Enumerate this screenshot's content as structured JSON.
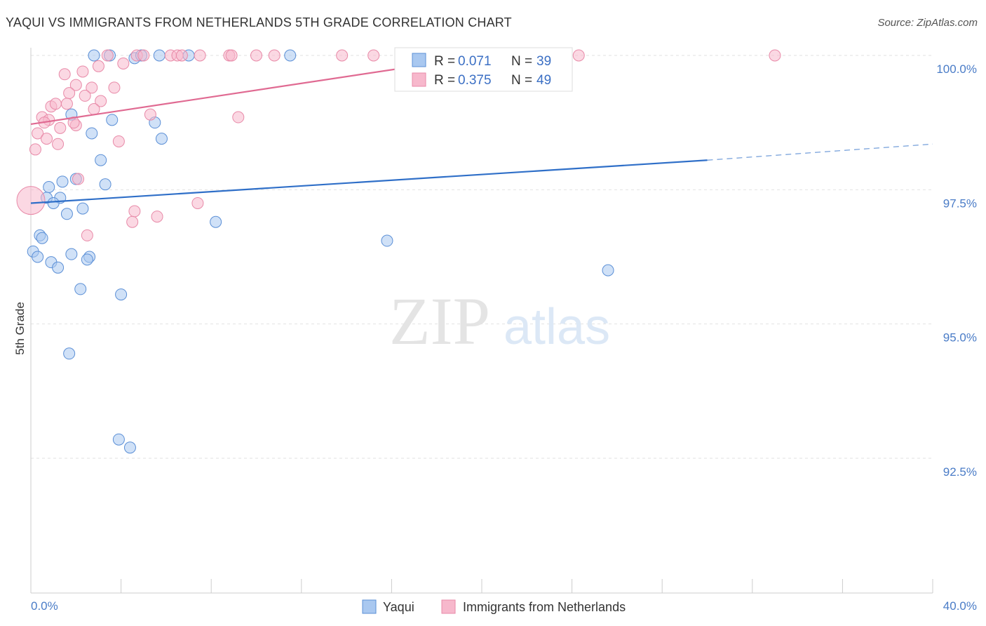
{
  "header": {
    "title": "YAQUI VS IMMIGRANTS FROM NETHERLANDS 5TH GRADE CORRELATION CHART",
    "source": "Source: ZipAtlas.com"
  },
  "watermark": {
    "zip": "ZIP",
    "atlas": "atlas"
  },
  "colors": {
    "blue": "#a9c8f0",
    "blue_stroke": "#5b8fd6",
    "blue_line": "#2f6fc8",
    "pink": "#f7b8cc",
    "pink_stroke": "#e88aa8",
    "pink_line": "#e06a92"
  },
  "legend": {
    "r_label": "R =",
    "n_label": "N =",
    "series1": {
      "r": "0.071",
      "n": "39"
    },
    "series2": {
      "r": "0.375",
      "n": "49"
    }
  },
  "chart_data": {
    "type": "scatter",
    "title": "YAQUI VS IMMIGRANTS FROM NETHERLANDS 5TH GRADE CORRELATION CHART",
    "xlabel": "",
    "ylabel": "5th Grade",
    "xlim": [
      0,
      40
    ],
    "ylim": [
      90.0,
      100.3
    ],
    "x_tick_labels": {
      "left": "0.0%",
      "right": "40.0%"
    },
    "y_ticks": [
      {
        "value": 100.0,
        "label": "100.0%"
      },
      {
        "value": 97.5,
        "label": "97.5%"
      },
      {
        "value": 95.0,
        "label": "95.0%"
      },
      {
        "value": 92.5,
        "label": "92.5%"
      }
    ],
    "series": [
      {
        "name": "Yaqui",
        "trend": {
          "x0": 0,
          "y0": 97.25,
          "x1": 30.0,
          "y1": 98.05,
          "dash_to_x": 40,
          "dash_to_y": 98.35
        },
        "points": [
          [
            2.8,
            100.0
          ],
          [
            3.5,
            100.0
          ],
          [
            4.6,
            99.95
          ],
          [
            4.9,
            100.0
          ],
          [
            5.7,
            100.0
          ],
          [
            7.0,
            100.0
          ],
          [
            11.5,
            100.0
          ],
          [
            1.8,
            98.9
          ],
          [
            2.7,
            98.55
          ],
          [
            3.6,
            98.8
          ],
          [
            5.5,
            98.75
          ],
          [
            5.8,
            98.45
          ],
          [
            3.1,
            98.05
          ],
          [
            1.4,
            97.65
          ],
          [
            2.0,
            97.7
          ],
          [
            3.3,
            97.6
          ],
          [
            0.8,
            97.55
          ],
          [
            0.7,
            97.35
          ],
          [
            1.3,
            97.35
          ],
          [
            1.0,
            97.25
          ],
          [
            2.3,
            97.15
          ],
          [
            1.6,
            97.05
          ],
          [
            8.2,
            96.9
          ],
          [
            0.4,
            96.65
          ],
          [
            0.5,
            96.6
          ],
          [
            15.8,
            96.55
          ],
          [
            0.1,
            96.35
          ],
          [
            0.3,
            96.25
          ],
          [
            1.8,
            96.3
          ],
          [
            2.6,
            96.25
          ],
          [
            2.5,
            96.2
          ],
          [
            0.9,
            96.15
          ],
          [
            1.2,
            96.05
          ],
          [
            25.6,
            96.0
          ],
          [
            2.2,
            95.65
          ],
          [
            4.0,
            95.55
          ],
          [
            1.7,
            94.45
          ],
          [
            3.9,
            92.85
          ],
          [
            4.4,
            92.7
          ]
        ]
      },
      {
        "name": "Immigrants from Netherlands",
        "trend": {
          "x0": 0,
          "y0": 98.72,
          "x1": 21.0,
          "y1": 100.05
        },
        "points": [
          [
            3.4,
            100.0
          ],
          [
            4.7,
            100.0
          ],
          [
            5.0,
            100.0
          ],
          [
            6.2,
            100.0
          ],
          [
            6.5,
            100.0
          ],
          [
            6.7,
            100.0
          ],
          [
            7.5,
            100.0
          ],
          [
            8.8,
            100.0
          ],
          [
            8.9,
            100.0
          ],
          [
            10.0,
            100.0
          ],
          [
            10.8,
            100.0
          ],
          [
            13.8,
            100.0
          ],
          [
            15.2,
            100.0
          ],
          [
            24.3,
            100.0
          ],
          [
            33.0,
            100.0
          ],
          [
            3.0,
            99.8
          ],
          [
            4.1,
            99.85
          ],
          [
            2.3,
            99.7
          ],
          [
            1.5,
            99.65
          ],
          [
            2.7,
            99.4
          ],
          [
            2.0,
            99.45
          ],
          [
            3.7,
            99.4
          ],
          [
            1.7,
            99.3
          ],
          [
            2.4,
            99.25
          ],
          [
            3.1,
            99.15
          ],
          [
            0.9,
            99.05
          ],
          [
            1.1,
            99.1
          ],
          [
            1.6,
            99.1
          ],
          [
            2.8,
            99.0
          ],
          [
            5.3,
            98.9
          ],
          [
            9.2,
            98.85
          ],
          [
            0.5,
            98.85
          ],
          [
            0.8,
            98.8
          ],
          [
            0.6,
            98.75
          ],
          [
            2.0,
            98.7
          ],
          [
            1.3,
            98.65
          ],
          [
            1.9,
            98.75
          ],
          [
            0.3,
            98.55
          ],
          [
            0.7,
            98.45
          ],
          [
            3.9,
            98.4
          ],
          [
            1.2,
            98.35
          ],
          [
            0.2,
            98.25
          ],
          [
            2.1,
            97.7
          ],
          [
            0.0,
            97.3
          ],
          [
            7.4,
            97.25
          ],
          [
            4.6,
            97.1
          ],
          [
            5.6,
            97.0
          ],
          [
            4.5,
            96.9
          ],
          [
            2.5,
            96.65
          ]
        ]
      }
    ],
    "legend": [
      "Yaqui",
      "Immigrants from Netherlands"
    ]
  }
}
